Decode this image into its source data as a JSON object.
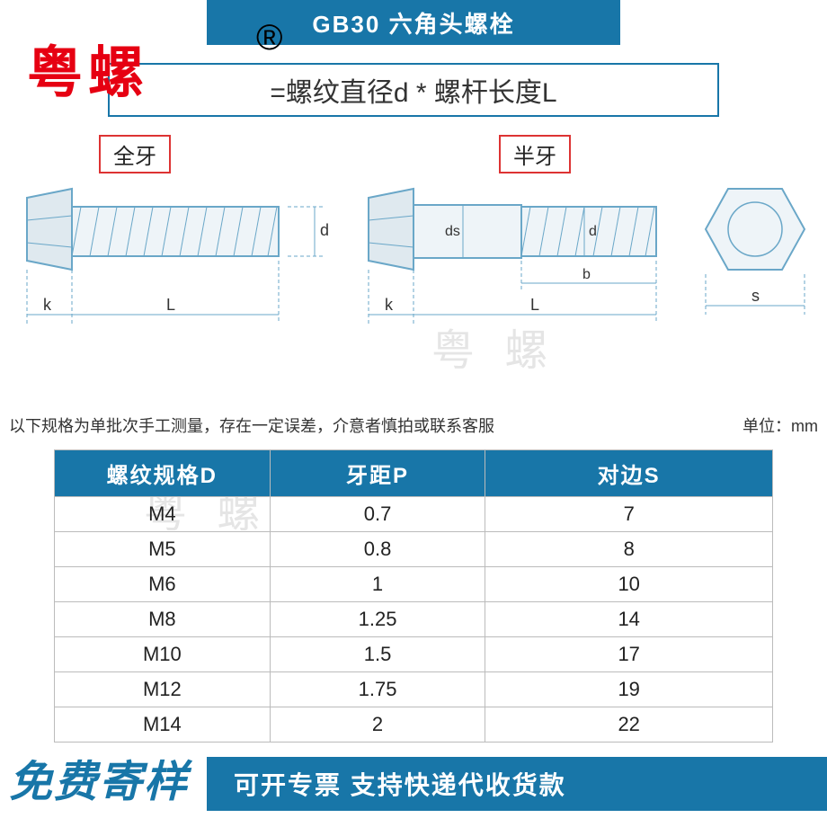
{
  "header": {
    "title": "GB30 六角头螺栓",
    "brand": "粤螺",
    "reg_symbol": "®",
    "formula_prefix": "=螺纹直径d * 螺杆长度L"
  },
  "diagram": {
    "label_full_thread": "全牙",
    "label_half_thread": "半牙",
    "dim_k": "k",
    "dim_L": "L",
    "dim_d": "d",
    "dim_ds": "ds",
    "dim_b": "b",
    "dim_s": "s",
    "line_color": "#6aa7c8",
    "hatch_color": "#6aa7c8",
    "outline_color": "#6aa7c8"
  },
  "watermark": "粤 螺",
  "note": {
    "left": "以下规格为单批次手工测量，存在一定误差，介意者慎拍或联系客服",
    "right": "单位：mm"
  },
  "table": {
    "columns": [
      "螺纹规格D",
      "牙距P",
      "对边S"
    ],
    "rows": [
      [
        "M4",
        "0.7",
        "7"
      ],
      [
        "M5",
        "0.8",
        "8"
      ],
      [
        "M6",
        "1",
        "10"
      ],
      [
        "M8",
        "1.25",
        "14"
      ],
      [
        "M10",
        "1.5",
        "17"
      ],
      [
        "M12",
        "1.75",
        "19"
      ],
      [
        "M14",
        "2",
        "22"
      ]
    ],
    "header_bg": "#1876a8",
    "header_fg": "#ffffff",
    "border_color": "#bbbbbb"
  },
  "footer": {
    "left": "免费寄样",
    "bar": "可开专票 支持快递代收货款"
  }
}
